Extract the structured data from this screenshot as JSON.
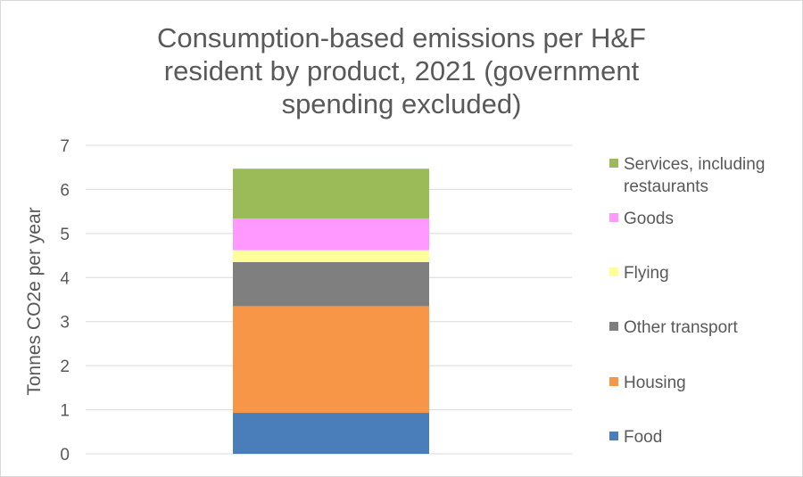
{
  "chart_data": {
    "type": "bar",
    "stacked": true,
    "title_lines": [
      "Consumption-based emissions per H&F",
      "resident by product, 2021 (government",
      "spending excluded)"
    ],
    "xlabel": "",
    "ylabel": "Tonnes CO2e per year",
    "ylim": [
      0,
      7
    ],
    "yticks": [
      "0",
      "1",
      "2",
      "3",
      "4",
      "5",
      "6",
      "7"
    ],
    "grid": true,
    "legend_position": "right",
    "categories": [
      ""
    ],
    "series": [
      {
        "name": "Food",
        "values": [
          0.93
        ],
        "color": "#4a7ebb"
      },
      {
        "name": "Housing",
        "values": [
          2.42
        ],
        "color": "#f79646"
      },
      {
        "name": "Other transport",
        "values": [
          1.0
        ],
        "color": "#7f7f7f"
      },
      {
        "name": "Flying",
        "values": [
          0.27
        ],
        "color": "#ffff99"
      },
      {
        "name": "Goods",
        "values": [
          0.72
        ],
        "color": "#ff99ff"
      },
      {
        "name": "Services, including restaurants",
        "values": [
          1.13
        ],
        "color": "#9bbb59"
      }
    ],
    "legend_lines": {
      "Services, including restaurants": [
        "Services, including",
        "restaurants"
      ]
    }
  }
}
